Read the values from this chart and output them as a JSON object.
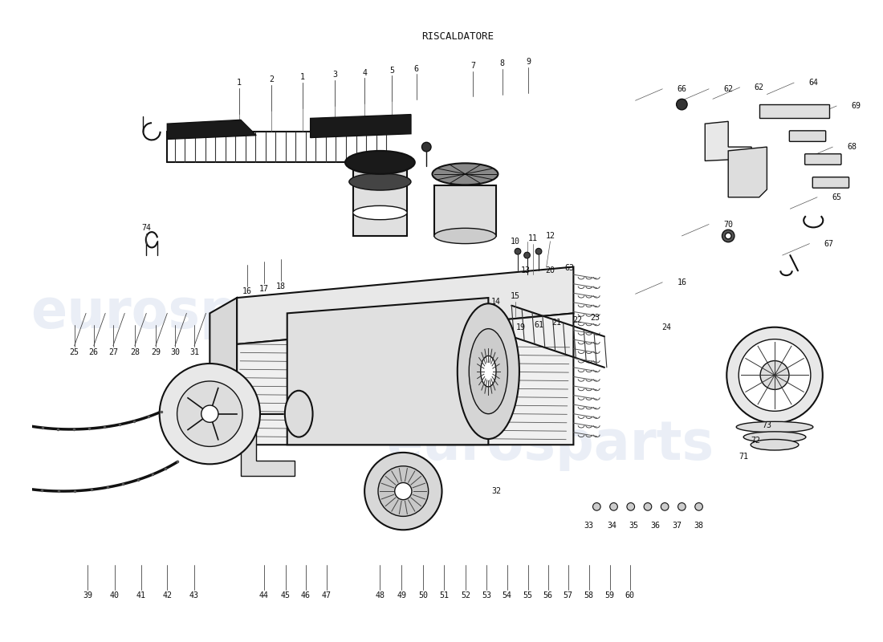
{
  "title": "RISCALDATORE",
  "title_fontsize": 9,
  "title_font": "monospace",
  "background_color": "#ffffff",
  "text_color": "#111111",
  "watermark_text": "eurosparts",
  "watermark_color": "#c8d4e8",
  "watermark_fontsize": 48,
  "watermark_alpha": 0.38,
  "fig_width": 11.0,
  "fig_height": 8.0,
  "dpi": 100,
  "label_fontsize": 7.2,
  "label_font": "monospace"
}
